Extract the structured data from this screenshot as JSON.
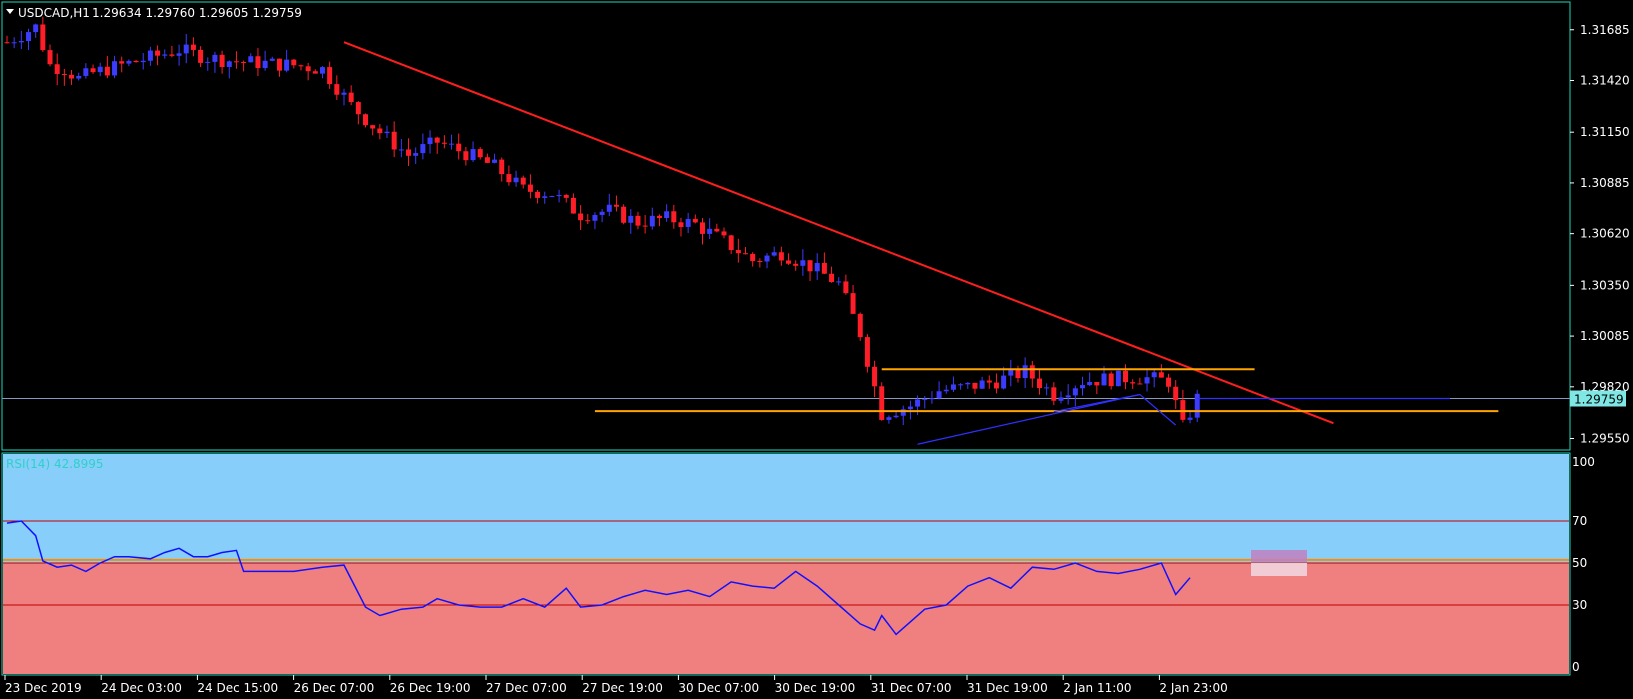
{
  "header": {
    "symbol_label": "USDCAD,H1",
    "ohlc_text": "1.29634 1.29760 1.29605 1.29759"
  },
  "price_axis": {
    "ticks": [
      "1.31685",
      "1.31420",
      "1.31150",
      "1.30885",
      "1.30620",
      "1.30350",
      "1.30085",
      "1.29820",
      "1.29550"
    ],
    "current_price": "1.29759"
  },
  "time_axis": {
    "labels": [
      "23 Dec 2019",
      "24 Dec 03:00",
      "24 Dec 15:00",
      "26 Dec 07:00",
      "26 Dec 19:00",
      "27 Dec 07:00",
      "27 Dec 19:00",
      "30 Dec 07:00",
      "30 Dec 19:00",
      "31 Dec 07:00",
      "31 Dec 19:00",
      "2 Jan 11:00",
      "2 Jan 23:00"
    ]
  },
  "rsi_panel": {
    "label": "RSI(14) 42.8995",
    "levels": [
      "100",
      "70",
      "50",
      "30",
      "0"
    ]
  },
  "colors": {
    "background": "#000000",
    "bull_candle": "#3c3cff",
    "bear_candle": "#ff1e28",
    "trendline": "#ff1e1e",
    "horizontal_levels": "#ffa500",
    "rsi_upper_zone": "#87cefa",
    "rsi_lower_zone": "#f08080",
    "rsi_line": "#1010ff",
    "axis_border": "#1fd6b8"
  },
  "chart_data": [
    {
      "type": "candlestick",
      "symbol": "USDCAD",
      "timeframe": "H1",
      "ylim": [
        1.2949,
        1.3183
      ],
      "close_path": [
        [
          0,
          1.3162
        ],
        [
          4,
          1.317
        ],
        [
          6,
          1.315
        ],
        [
          8,
          1.3148
        ],
        [
          10,
          1.3143
        ],
        [
          12,
          1.3146
        ],
        [
          16,
          1.315
        ],
        [
          20,
          1.3154
        ],
        [
          24,
          1.3158
        ],
        [
          28,
          1.3154
        ],
        [
          32,
          1.3152
        ],
        [
          36,
          1.3151
        ],
        [
          40,
          1.315
        ],
        [
          44,
          1.3148
        ],
        [
          48,
          1.3129
        ],
        [
          52,
          1.3115
        ],
        [
          56,
          1.3103
        ],
        [
          60,
          1.311
        ],
        [
          64,
          1.3104
        ],
        [
          68,
          1.3097
        ],
        [
          72,
          1.3085
        ],
        [
          76,
          1.3083
        ],
        [
          80,
          1.3072
        ],
        [
          84,
          1.3074
        ],
        [
          88,
          1.3068
        ],
        [
          92,
          1.307
        ],
        [
          96,
          1.3067
        ],
        [
          100,
          1.3058
        ],
        [
          104,
          1.3048
        ],
        [
          108,
          1.3052
        ],
        [
          112,
          1.3045
        ],
        [
          116,
          1.3036
        ],
        [
          119,
          1.301
        ],
        [
          122,
          1.2968
        ],
        [
          126,
          1.2972
        ],
        [
          130,
          1.298
        ],
        [
          134,
          1.2982
        ],
        [
          138,
          1.2985
        ],
        [
          142,
          1.299
        ],
        [
          146,
          1.2978
        ],
        [
          150,
          1.2985
        ],
        [
          153,
          1.2986
        ],
        [
          158,
          1.2987
        ],
        [
          162,
          1.2985
        ],
        [
          164,
          1.2961
        ],
        [
          166,
          1.2976
        ]
      ],
      "trendline": [
        [
          47,
          1.3162
        ],
        [
          185,
          1.2963
        ]
      ],
      "horizontal_levels": [
        {
          "price": 1.29912,
          "from_bar": 122,
          "to_bar": 174
        },
        {
          "price": 1.29693,
          "from_bar": 82,
          "to_bar": 208
        }
      ],
      "blue_lines": [
        [
          [
            127,
            1.2952
          ],
          [
            158,
            1.2978
          ]
        ],
        [
          [
            146,
            1.2969
          ],
          [
            158,
            1.2978
          ],
          [
            163,
            1.2962
          ]
        ]
      ],
      "current_price_line": 1.29759
    },
    {
      "type": "line",
      "name": "RSI(14)",
      "ylim": [
        0,
        100
      ],
      "levels": [
        70,
        50,
        30
      ],
      "last_value": 42.8995,
      "y_path": [
        [
          0,
          69
        ],
        [
          2,
          70
        ],
        [
          4,
          63
        ],
        [
          5,
          51
        ],
        [
          7,
          48
        ],
        [
          9,
          49
        ],
        [
          11,
          46
        ],
        [
          13,
          50
        ],
        [
          15,
          53
        ],
        [
          17,
          53
        ],
        [
          20,
          52
        ],
        [
          22,
          55
        ],
        [
          24,
          57
        ],
        [
          26,
          53
        ],
        [
          28,
          53
        ],
        [
          30,
          55
        ],
        [
          32,
          56
        ],
        [
          33,
          46
        ],
        [
          36,
          46
        ],
        [
          40,
          46
        ],
        [
          44,
          48
        ],
        [
          47,
          49
        ],
        [
          50,
          29
        ],
        [
          52,
          25
        ],
        [
          55,
          28
        ],
        [
          58,
          29
        ],
        [
          60,
          33
        ],
        [
          63,
          30
        ],
        [
          66,
          29
        ],
        [
          69,
          29
        ],
        [
          72,
          33
        ],
        [
          75,
          29
        ],
        [
          78,
          38
        ],
        [
          80,
          29
        ],
        [
          83,
          30
        ],
        [
          86,
          34
        ],
        [
          89,
          37
        ],
        [
          92,
          35
        ],
        [
          95,
          37
        ],
        [
          98,
          34
        ],
        [
          101,
          41
        ],
        [
          104,
          39
        ],
        [
          107,
          38
        ],
        [
          110,
          46
        ],
        [
          113,
          39
        ],
        [
          116,
          30
        ],
        [
          119,
          21
        ],
        [
          121,
          18
        ],
        [
          122,
          25
        ],
        [
          124,
          16
        ],
        [
          126,
          22
        ],
        [
          128,
          28
        ],
        [
          131,
          30
        ],
        [
          134,
          39
        ],
        [
          137,
          43
        ],
        [
          140,
          38
        ],
        [
          143,
          48
        ],
        [
          146,
          47
        ],
        [
          149,
          50
        ],
        [
          152,
          46
        ],
        [
          155,
          45
        ],
        [
          158,
          47
        ],
        [
          161,
          50
        ],
        [
          163,
          35
        ],
        [
          165,
          43
        ]
      ]
    }
  ]
}
